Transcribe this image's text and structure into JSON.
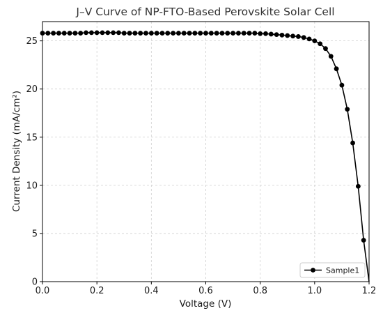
{
  "chart_data": {
    "type": "line",
    "title": "J–V Curve of NP-FTO-Based Perovskite Solar Cell",
    "xlabel": "Voltage (V)",
    "ylabel": "Current Density (mA/cm²)",
    "xlim": [
      0.0,
      1.2
    ],
    "ylim": [
      0,
      27
    ],
    "xticks": [
      0.0,
      0.2,
      0.4,
      0.6,
      0.8,
      1.0,
      1.2
    ],
    "yticks": [
      0,
      5,
      10,
      15,
      20,
      25
    ],
    "xtick_labels": [
      "0.0",
      "0.2",
      "0.4",
      "0.6",
      "0.8",
      "1.0",
      "1.2"
    ],
    "ytick_labels": [
      "0",
      "5",
      "10",
      "15",
      "20",
      "25"
    ],
    "grid": true,
    "legend_position": "bottom-right",
    "series": [
      {
        "name": "Sample1",
        "color": "#000000",
        "marker": "circle",
        "x": [
          0.0,
          0.02,
          0.04,
          0.06,
          0.08,
          0.1,
          0.12,
          0.14,
          0.16,
          0.18,
          0.2,
          0.22,
          0.24,
          0.26,
          0.28,
          0.3,
          0.32,
          0.34,
          0.36,
          0.38,
          0.4,
          0.42,
          0.44,
          0.46,
          0.48,
          0.5,
          0.52,
          0.54,
          0.56,
          0.58,
          0.6,
          0.62,
          0.64,
          0.66,
          0.68,
          0.7,
          0.72,
          0.74,
          0.76,
          0.78,
          0.8,
          0.82,
          0.84,
          0.86,
          0.88,
          0.9,
          0.92,
          0.94,
          0.96,
          0.98,
          1.0,
          1.02,
          1.04,
          1.06,
          1.08,
          1.1,
          1.12,
          1.14,
          1.16,
          1.18,
          1.2
        ],
        "y": [
          25.8,
          25.8,
          25.8,
          25.8,
          25.8,
          25.8,
          25.8,
          25.8,
          25.85,
          25.85,
          25.85,
          25.85,
          25.85,
          25.85,
          25.85,
          25.8,
          25.8,
          25.8,
          25.8,
          25.8,
          25.8,
          25.8,
          25.8,
          25.8,
          25.8,
          25.8,
          25.8,
          25.8,
          25.8,
          25.8,
          25.8,
          25.8,
          25.8,
          25.8,
          25.8,
          25.8,
          25.8,
          25.8,
          25.8,
          25.8,
          25.75,
          25.75,
          25.7,
          25.65,
          25.6,
          25.55,
          25.5,
          25.45,
          25.35,
          25.2,
          25.0,
          24.7,
          24.2,
          23.4,
          22.1,
          20.4,
          17.9,
          14.4,
          9.9,
          4.3,
          0.0
        ]
      }
    ]
  }
}
